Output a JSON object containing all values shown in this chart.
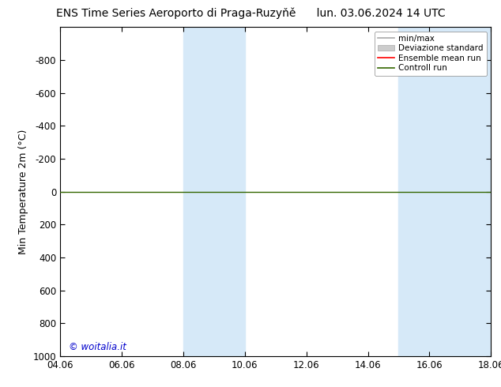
{
  "title_left": "ENS Time Series Aeroporto di Praga-Ruzyňě",
  "title_right": "lun. 03.06.2024 14 UTC",
  "ylabel": "Min Temperature 2m (°C)",
  "watermark": "© woitalia.it",
  "ylim_top": -1000,
  "ylim_bottom": 1000,
  "yticks": [
    -800,
    -600,
    -400,
    -200,
    0,
    200,
    400,
    600,
    800,
    1000
  ],
  "xtick_labels": [
    "04.06",
    "06.06",
    "08.06",
    "10.06",
    "12.06",
    "14.06",
    "16.06",
    "18.06"
  ],
  "xtick_positions": [
    0,
    2,
    4,
    6,
    8,
    10,
    12,
    14
  ],
  "shaded_bands": [
    {
      "x_start": 4,
      "x_end": 6
    },
    {
      "x_start": 11,
      "x_end": 14
    }
  ],
  "shaded_color": "#d6e9f8",
  "horizontal_line_y": 0,
  "horizontal_line_color": "#336600",
  "background_color": "#ffffff",
  "plot_bg_color": "#ffffff",
  "title_fontsize": 10,
  "tick_fontsize": 8.5,
  "ylabel_fontsize": 9
}
